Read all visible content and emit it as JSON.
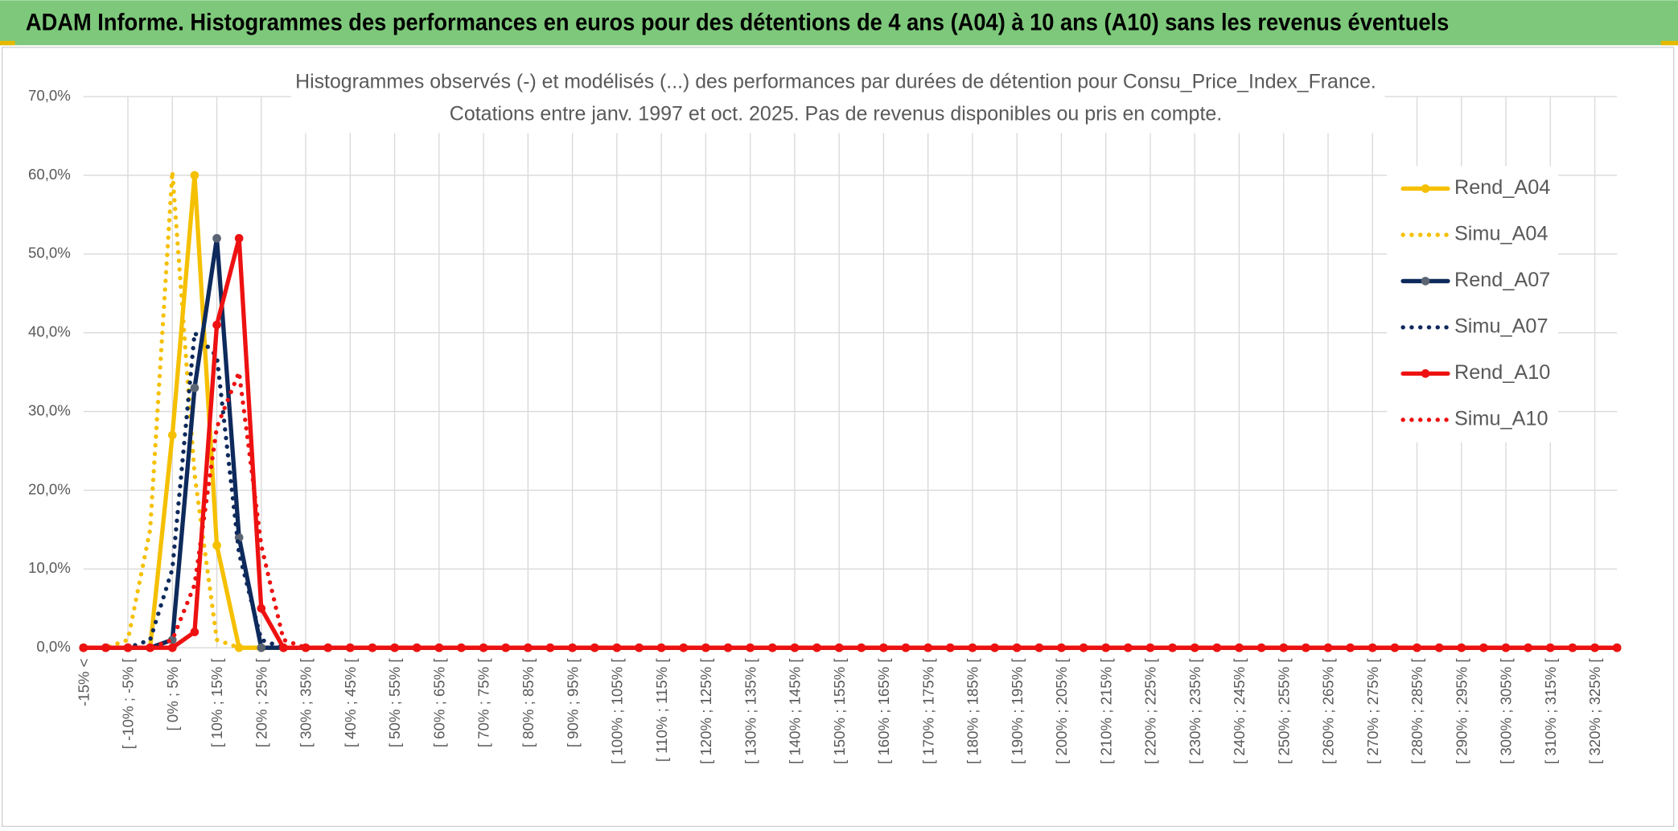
{
  "header": "ADAM Informe. Histogrammes des performances en euros pour des détentions de 4 ans (A04) à 10 ans (A10) sans les revenus éventuels",
  "chart_data": {
    "type": "line",
    "title": "Histogrammes observés (-) et modélisés (...) des performances par durées de détention pour Consu_Price_Index_France.",
    "subtitle": "Cotations entre janv. 1997 et oct. 2025. Pas de revenus disponibles ou pris en compte.",
    "categories": [
      "-15% <",
      null,
      "[ -10% ; -5% [",
      null,
      "[ 0% ; 5% [",
      null,
      "[ 10% ; 15% [",
      null,
      "[ 20% ; 25% [",
      null,
      "[ 30% ; 35% [",
      null,
      "[ 40% ; 45% [",
      null,
      "[ 50% ; 55% [",
      null,
      "[ 60% ; 65% [",
      null,
      "[ 70% ; 75% [",
      null,
      "[ 80% ; 85% [",
      null,
      "[ 90% ; 95% [",
      null,
      "[ 100% ; 105% [",
      null,
      "[ 110% ; 115% [",
      null,
      "[ 120% ; 125% [",
      null,
      "[ 130% ; 135% [",
      null,
      "[ 140% ; 145% [",
      null,
      "[ 150% ; 155% [",
      null,
      "[ 160% ; 165% [",
      null,
      "[ 170% ; 175% [",
      null,
      "[ 180% ; 185% [",
      null,
      "[ 190% ; 195% [",
      null,
      "[ 200% ; 205% [",
      null,
      "[ 210% ; 215% [",
      null,
      "[ 220% ; 225% [",
      null,
      "[ 230% ; 235% [",
      null,
      "[ 240% ; 245% [",
      null,
      "[ 250% ; 255% [",
      null,
      "[ 260% ; 265% [",
      null,
      "[ 270% ; 275% [",
      null,
      "[ 280% ; 285% [",
      null,
      "[ 290% ; 295% [",
      null,
      "[ 300% ; 305% [",
      null,
      "[ 310% ; 315% [",
      null,
      "[ 320% ; 325% [",
      null
    ],
    "series": [
      {
        "name": "Rend_A04",
        "color": "#f5c000",
        "style": "solid",
        "marker_color": "#f5c000",
        "values": [
          0,
          0,
          0,
          0,
          27,
          60,
          13,
          0,
          0,
          0,
          0,
          0,
          0,
          0,
          0,
          0,
          0,
          0,
          0,
          0,
          0,
          0,
          0,
          0,
          0,
          0,
          0,
          0,
          0,
          0,
          0,
          0,
          0,
          0,
          0,
          0,
          0,
          0,
          0,
          0,
          0,
          0,
          0,
          0,
          0,
          0,
          0,
          0,
          0,
          0,
          0,
          0,
          0,
          0,
          0,
          0,
          0,
          0,
          0,
          0,
          0,
          0,
          0,
          0,
          0,
          0,
          0,
          0,
          0,
          0
        ]
      },
      {
        "name": "Simu_A04",
        "color": "#f5c000",
        "style": "dotted",
        "values": [
          0,
          0,
          1,
          15,
          60.5,
          22,
          1,
          0,
          0,
          0,
          0,
          0,
          0,
          0,
          0,
          0,
          0,
          0,
          0,
          0,
          0,
          0,
          0,
          0,
          0,
          0,
          0,
          0,
          0,
          0,
          0,
          0,
          0,
          0,
          0,
          0,
          0,
          0,
          0,
          0,
          0,
          0,
          0,
          0,
          0,
          0,
          0,
          0,
          0,
          0,
          0,
          0,
          0,
          0,
          0,
          0,
          0,
          0,
          0,
          0,
          0,
          0,
          0,
          0,
          0,
          0,
          0,
          0,
          0,
          0
        ]
      },
      {
        "name": "Rend_A07",
        "color": "#0e2a5c",
        "style": "solid",
        "marker_color": "#5a6472",
        "values": [
          0,
          0,
          0,
          0,
          1,
          33,
          52,
          14,
          0,
          0,
          0,
          0,
          0,
          0,
          0,
          0,
          0,
          0,
          0,
          0,
          0,
          0,
          0,
          0,
          0,
          0,
          0,
          0,
          0,
          0,
          0,
          0,
          0,
          0,
          0,
          0,
          0,
          0,
          0,
          0,
          0,
          0,
          0,
          0,
          0,
          0,
          0,
          0,
          0,
          0,
          0,
          0,
          0,
          0,
          0,
          0,
          0,
          0,
          0,
          0,
          0,
          0,
          0,
          0,
          0,
          0,
          0,
          0,
          0,
          0
        ]
      },
      {
        "name": "Simu_A07",
        "color": "#0e2a5c",
        "style": "dotted",
        "values": [
          0,
          0,
          0,
          1,
          10,
          40,
          37,
          12,
          1,
          0,
          0,
          0,
          0,
          0,
          0,
          0,
          0,
          0,
          0,
          0,
          0,
          0,
          0,
          0,
          0,
          0,
          0,
          0,
          0,
          0,
          0,
          0,
          0,
          0,
          0,
          0,
          0,
          0,
          0,
          0,
          0,
          0,
          0,
          0,
          0,
          0,
          0,
          0,
          0,
          0,
          0,
          0,
          0,
          0,
          0,
          0,
          0,
          0,
          0,
          0,
          0,
          0,
          0,
          0,
          0,
          0,
          0,
          0,
          0,
          0
        ]
      },
      {
        "name": "Rend_A10",
        "color": "#ee1111",
        "style": "solid",
        "marker_color": "#ee1111",
        "values": [
          0,
          0,
          0,
          0,
          0,
          2,
          41,
          52,
          5,
          0,
          0,
          0,
          0,
          0,
          0,
          0,
          0,
          0,
          0,
          0,
          0,
          0,
          0,
          0,
          0,
          0,
          0,
          0,
          0,
          0,
          0,
          0,
          0,
          0,
          0,
          0,
          0,
          0,
          0,
          0,
          0,
          0,
          0,
          0,
          0,
          0,
          0,
          0,
          0,
          0,
          0,
          0,
          0,
          0,
          0,
          0,
          0,
          0,
          0,
          0,
          0,
          0,
          0,
          0,
          0,
          0,
          0,
          0,
          0,
          0
        ]
      },
      {
        "name": "Simu_A10",
        "color": "#ee1111",
        "style": "dotted",
        "values": [
          0,
          0,
          0,
          0,
          1,
          8,
          28,
          35,
          13,
          1,
          0,
          0,
          0,
          0,
          0,
          0,
          0,
          0,
          0,
          0,
          0,
          0,
          0,
          0,
          0,
          0,
          0,
          0,
          0,
          0,
          0,
          0,
          0,
          0,
          0,
          0,
          0,
          0,
          0,
          0,
          0,
          0,
          0,
          0,
          0,
          0,
          0,
          0,
          0,
          0,
          0,
          0,
          0,
          0,
          0,
          0,
          0,
          0,
          0,
          0,
          0,
          0,
          0,
          0,
          0,
          0,
          0,
          0,
          0,
          0
        ]
      }
    ],
    "ylim": [
      0,
      70
    ],
    "yticks": [
      {
        "value": 0,
        "label": "0,0%"
      },
      {
        "value": 10,
        "label": "10,0%"
      },
      {
        "value": 20,
        "label": "20,0%"
      },
      {
        "value": 30,
        "label": "30,0%"
      },
      {
        "value": 40,
        "label": "40,0%"
      },
      {
        "value": 50,
        "label": "50,0%"
      },
      {
        "value": 60,
        "label": "60,0%"
      },
      {
        "value": 70,
        "label": "70,0%"
      }
    ],
    "grid": true,
    "legend": "right"
  }
}
